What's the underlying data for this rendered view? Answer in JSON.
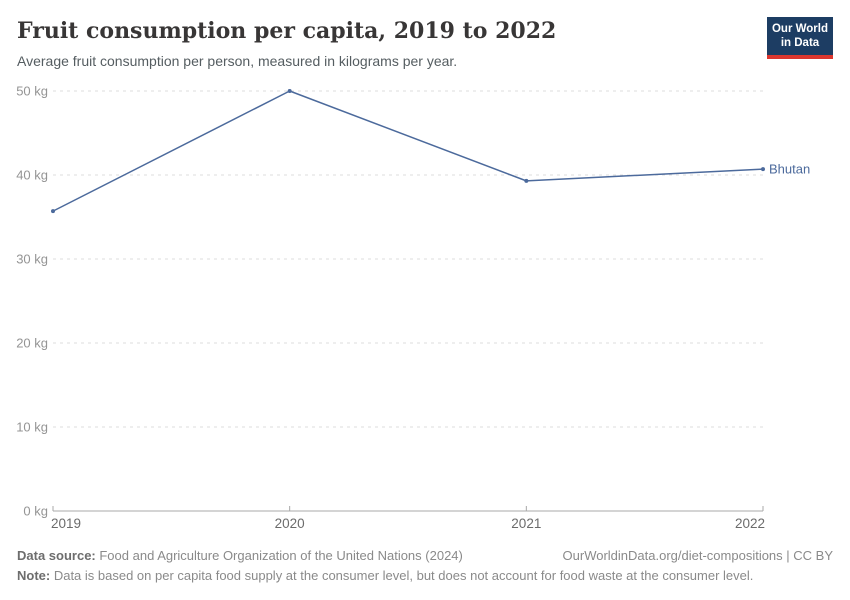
{
  "header": {
    "title": "Fruit consumption per capita, 2019 to 2022",
    "subtitle": "Average fruit consumption per person, measured in kilograms per year.",
    "logo": {
      "line1": "Our World",
      "line2": "in Data",
      "bg_color": "#1d3d63",
      "accent_color": "#dc362e"
    }
  },
  "chart_data": {
    "type": "line",
    "title": "Fruit consumption per capita, 2019 to 2022",
    "x": [
      "2019",
      "2020",
      "2021",
      "2022"
    ],
    "series": [
      {
        "name": "Bhutan",
        "values": [
          35.7,
          50,
          39.3,
          40.7
        ],
        "color": "#4c6a9c"
      }
    ],
    "xlabel": "",
    "ylabel": "",
    "unit": "kg",
    "y_ticks": [
      0,
      10,
      20,
      30,
      40,
      50
    ],
    "ylim": [
      0,
      50
    ],
    "grid": "horizontal-dashed",
    "legend_position": "end-of-line-label",
    "end_label": "Bhutan",
    "colors": {
      "line": "#4c6a9c",
      "grid": "#dcdcdc",
      "axis": "#a8a8a8",
      "y_tick_label": "#949494",
      "x_tick_label": "#6b6b6b"
    }
  },
  "footer": {
    "data_source_label": "Data source:",
    "data_source_text": " Food and Agriculture Organization of the United Nations (2024)",
    "link_text": "OurWorldinData.org/diet-compositions | CC BY",
    "note_label": "Note:",
    "note_text": " Data is based on per capita food supply at the consumer level, but does not account for food waste at the consumer level."
  }
}
